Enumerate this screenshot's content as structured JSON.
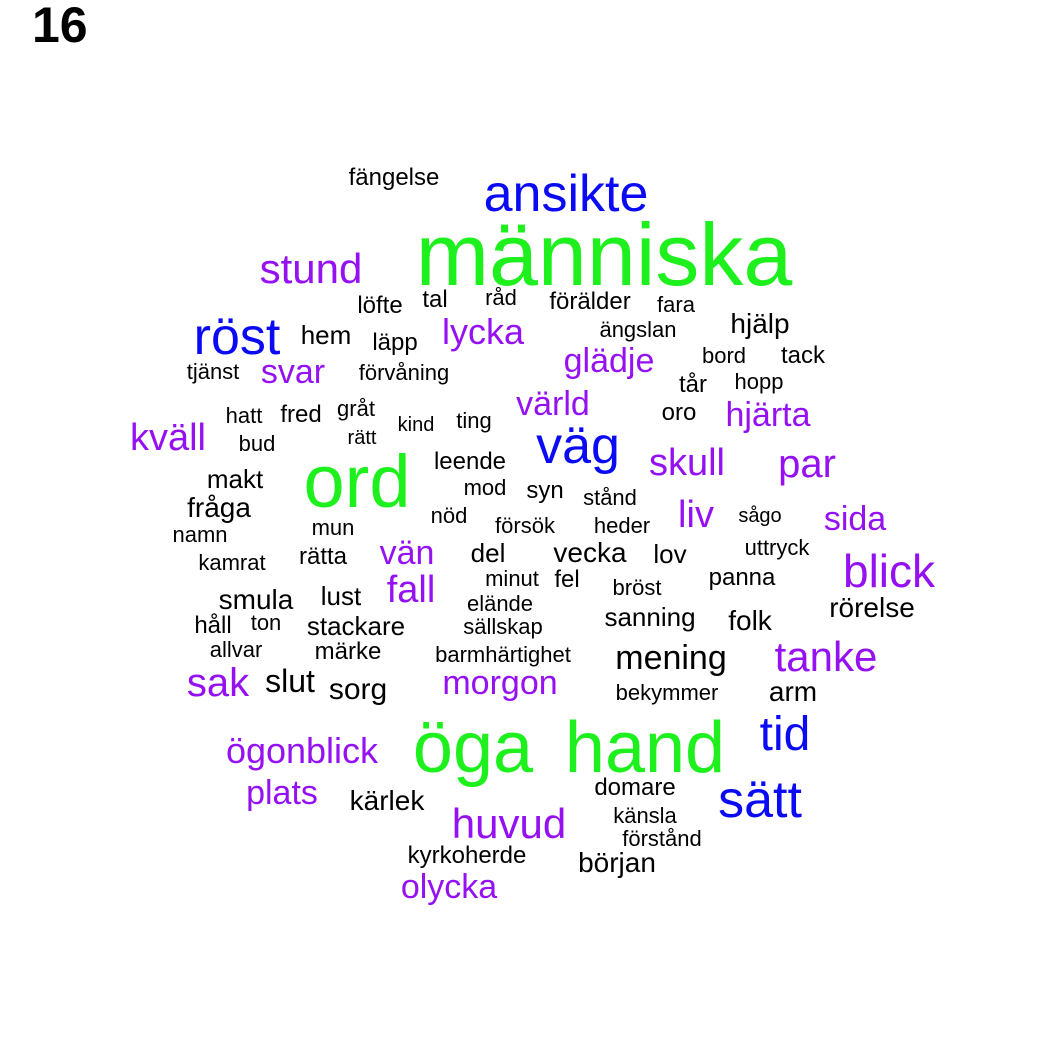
{
  "page_number": "16",
  "colors": {
    "green": "#1ef01e",
    "blue": "#0a0af5",
    "purple": "#9510f2",
    "black": "#000000"
  },
  "words": [
    {
      "text": "människa",
      "color": "green"
    },
    {
      "text": "ord",
      "color": "green"
    },
    {
      "text": "öga",
      "color": "green"
    },
    {
      "text": "hand",
      "color": "green"
    },
    {
      "text": "ansikte",
      "color": "blue"
    },
    {
      "text": "röst",
      "color": "blue"
    },
    {
      "text": "väg",
      "color": "blue"
    },
    {
      "text": "tid",
      "color": "blue"
    },
    {
      "text": "sätt",
      "color": "blue"
    },
    {
      "text": "stund",
      "color": "purple"
    },
    {
      "text": "lycka",
      "color": "purple"
    },
    {
      "text": "svar",
      "color": "purple"
    },
    {
      "text": "glädje",
      "color": "purple"
    },
    {
      "text": "värld",
      "color": "purple"
    },
    {
      "text": "hjärta",
      "color": "purple"
    },
    {
      "text": "kväll",
      "color": "purple"
    },
    {
      "text": "skull",
      "color": "purple"
    },
    {
      "text": "par",
      "color": "purple"
    },
    {
      "text": "liv",
      "color": "purple"
    },
    {
      "text": "sida",
      "color": "purple"
    },
    {
      "text": "vän",
      "color": "purple"
    },
    {
      "text": "blick",
      "color": "purple"
    },
    {
      "text": "fall",
      "color": "purple"
    },
    {
      "text": "tanke",
      "color": "purple"
    },
    {
      "text": "sak",
      "color": "purple"
    },
    {
      "text": "morgon",
      "color": "purple"
    },
    {
      "text": "ögonblick",
      "color": "purple"
    },
    {
      "text": "plats",
      "color": "purple"
    },
    {
      "text": "huvud",
      "color": "purple"
    },
    {
      "text": "olycka",
      "color": "purple"
    },
    {
      "text": "fängelse",
      "color": "black"
    },
    {
      "text": "löfte",
      "color": "black"
    },
    {
      "text": "tal",
      "color": "black"
    },
    {
      "text": "råd",
      "color": "black"
    },
    {
      "text": "förälder",
      "color": "black"
    },
    {
      "text": "fara",
      "color": "black"
    },
    {
      "text": "hjälp",
      "color": "black"
    },
    {
      "text": "hem",
      "color": "black"
    },
    {
      "text": "läpp",
      "color": "black"
    },
    {
      "text": "ängslan",
      "color": "black"
    },
    {
      "text": "bord",
      "color": "black"
    },
    {
      "text": "tack",
      "color": "black"
    },
    {
      "text": "tjänst",
      "color": "black"
    },
    {
      "text": "förvåning",
      "color": "black"
    },
    {
      "text": "tår",
      "color": "black"
    },
    {
      "text": "hopp",
      "color": "black"
    },
    {
      "text": "hatt",
      "color": "black"
    },
    {
      "text": "fred",
      "color": "black"
    },
    {
      "text": "gråt",
      "color": "black"
    },
    {
      "text": "kind",
      "color": "black"
    },
    {
      "text": "ting",
      "color": "black"
    },
    {
      "text": "oro",
      "color": "black"
    },
    {
      "text": "bud",
      "color": "black"
    },
    {
      "text": "rätt",
      "color": "black"
    },
    {
      "text": "leende",
      "color": "black"
    },
    {
      "text": "makt",
      "color": "black"
    },
    {
      "text": "mod",
      "color": "black"
    },
    {
      "text": "syn",
      "color": "black"
    },
    {
      "text": "stånd",
      "color": "black"
    },
    {
      "text": "fråga",
      "color": "black"
    },
    {
      "text": "nöd",
      "color": "black"
    },
    {
      "text": "sågo",
      "color": "black"
    },
    {
      "text": "namn",
      "color": "black"
    },
    {
      "text": "mun",
      "color": "black"
    },
    {
      "text": "försök",
      "color": "black"
    },
    {
      "text": "heder",
      "color": "black"
    },
    {
      "text": "uttryck",
      "color": "black"
    },
    {
      "text": "kamrat",
      "color": "black"
    },
    {
      "text": "rätta",
      "color": "black"
    },
    {
      "text": "del",
      "color": "black"
    },
    {
      "text": "vecka",
      "color": "black"
    },
    {
      "text": "lov",
      "color": "black"
    },
    {
      "text": "minut",
      "color": "black"
    },
    {
      "text": "fel",
      "color": "black"
    },
    {
      "text": "panna",
      "color": "black"
    },
    {
      "text": "smula",
      "color": "black"
    },
    {
      "text": "lust",
      "color": "black"
    },
    {
      "text": "elände",
      "color": "black"
    },
    {
      "text": "bröst",
      "color": "black"
    },
    {
      "text": "rörelse",
      "color": "black"
    },
    {
      "text": "håll",
      "color": "black"
    },
    {
      "text": "ton",
      "color": "black"
    },
    {
      "text": "stackare",
      "color": "black"
    },
    {
      "text": "sällskap",
      "color": "black"
    },
    {
      "text": "sanning",
      "color": "black"
    },
    {
      "text": "folk",
      "color": "black"
    },
    {
      "text": "allvar",
      "color": "black"
    },
    {
      "text": "märke",
      "color": "black"
    },
    {
      "text": "barmhärtighet",
      "color": "black"
    },
    {
      "text": "mening",
      "color": "black"
    },
    {
      "text": "slut",
      "color": "black"
    },
    {
      "text": "sorg",
      "color": "black"
    },
    {
      "text": "bekymmer",
      "color": "black"
    },
    {
      "text": "arm",
      "color": "black"
    },
    {
      "text": "domare",
      "color": "black"
    },
    {
      "text": "kärlek",
      "color": "black"
    },
    {
      "text": "känsla",
      "color": "black"
    },
    {
      "text": "förstånd",
      "color": "black"
    },
    {
      "text": "kyrkoherde",
      "color": "black"
    },
    {
      "text": "början",
      "color": "black"
    }
  ]
}
